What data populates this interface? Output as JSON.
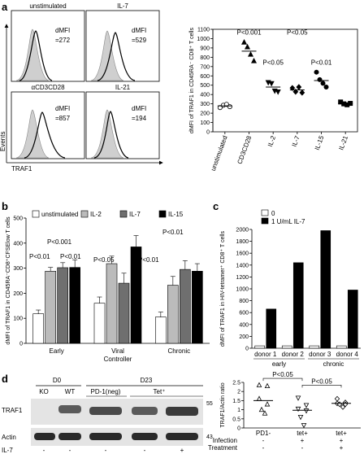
{
  "panel_a": {
    "letter": "a",
    "histograms": [
      {
        "title": "unstimulated",
        "dmfi_label": "dMFI",
        "dmfi_value": "=272"
      },
      {
        "title": "IL-7",
        "dmfi_label": "dMFI",
        "dmfi_value": "=529"
      },
      {
        "title": "αCD3CD28",
        "dmfi_label": "dMFI",
        "dmfi_value": "=857"
      },
      {
        "title": "IL-21",
        "dmfi_label": "dMFI",
        "dmfi_value": "=194"
      }
    ],
    "y_axis_label": "Events",
    "x_axis_label": "TRAF1"
  },
  "chart_data": [
    {
      "id": "a-scatter",
      "type": "scatter",
      "ylabel": "dMFI of TRAF1 in CD45RA⁻ CD8⁺ T cells",
      "ylim": [
        0,
        1100
      ],
      "yticks": [
        0,
        100,
        200,
        300,
        400,
        500,
        600,
        700,
        800,
        900,
        1000,
        1100
      ],
      "categories": [
        "unstimulated",
        "CD3CD28",
        "IL-2",
        "IL-7",
        "IL-15",
        "IL-21"
      ],
      "markers": [
        "open-circle",
        "filled-triangle",
        "filled-triangle-down",
        "filled-diamond",
        "filled-circle",
        "filled-square"
      ],
      "points": [
        [
          260,
          285,
          295,
          270
        ],
        [
          960,
          910,
          830,
          760
        ],
        [
          530,
          520,
          440,
          430
        ],
        [
          470,
          430,
          480,
          420
        ],
        [
          640,
          560,
          520,
          480
        ],
        [
          320,
          300,
          290,
          305
        ]
      ],
      "means": [
        278,
        865,
        480,
        450,
        550,
        305
      ],
      "annotations": [
        "P<0.001",
        "P<0.05",
        "P<0.05",
        "P<0.01"
      ]
    },
    {
      "id": "b-bar",
      "type": "bar",
      "ylabel": "dMFI of TRAF1 in CD45RA⁻CD8⁺CFSElow T cells",
      "ylim": [
        0,
        500
      ],
      "yticks": [
        0,
        100,
        200,
        300,
        400,
        500
      ],
      "categories": [
        "Early",
        "Viral Controller",
        "Chronic"
      ],
      "series": [
        {
          "name": "unstimulated",
          "color": "#ffffff",
          "values": [
            118,
            160,
            105
          ],
          "errors": [
            15,
            25,
            20
          ]
        },
        {
          "name": "IL-2",
          "color": "#bbbbbb",
          "values": [
            288,
            318,
            232
          ],
          "errors": [
            15,
            30,
            35
          ]
        },
        {
          "name": "IL-7",
          "color": "#6f6f6f",
          "values": [
            302,
            240,
            295
          ],
          "errors": [
            20,
            40,
            35
          ]
        },
        {
          "name": "IL-15",
          "color": "#000000",
          "values": [
            303,
            385,
            288
          ],
          "errors": [
            30,
            45,
            30
          ]
        }
      ],
      "annotations": [
        "P<0.001",
        "P<0.01",
        "P<0.01",
        "P<0.05",
        "P<0.01",
        "P<0.01"
      ]
    },
    {
      "id": "c-bar",
      "type": "bar",
      "ylabel": "dMFI of TRAF1 in HIV-tetramer⁺ CD8⁺ T cells",
      "ylim": [
        0,
        2000
      ],
      "yticks": [
        0,
        200,
        400,
        600,
        800,
        1000,
        1200,
        1400,
        1600,
        1800,
        2000
      ],
      "categories": [
        "donor 1",
        "donor 2",
        "donor 3",
        "donor 4"
      ],
      "groups": [
        "early",
        "chronic"
      ],
      "series": [
        {
          "name": "0",
          "color": "#ffffff",
          "values": [
            40,
            40,
            40,
            40
          ]
        },
        {
          "name": "1 U/mL IL-7",
          "color": "#000000",
          "values": [
            660,
            1440,
            1980,
            980
          ]
        }
      ]
    },
    {
      "id": "d-scatter",
      "type": "scatter",
      "ylabel": "TRAF1/Actin ratio",
      "ylim": [
        0,
        2.5
      ],
      "yticks": [
        0,
        0.5,
        1,
        1.5,
        2,
        2.5
      ],
      "categories": [
        "PD1-",
        "tet+",
        "tet+"
      ],
      "markers": [
        "open-triangle",
        "open-triangle-down",
        "open-diamond"
      ],
      "points": [
        [
          2.35,
          2.3,
          1.6,
          1.3,
          1.0,
          0.8
        ],
        [
          1.65,
          1.25,
          1.05,
          0.95,
          0.6,
          0.15
        ],
        [
          1.6,
          1.4,
          1.35,
          1.3,
          1.3,
          1.15
        ]
      ],
      "means": [
        1.5,
        0.97,
        1.35
      ],
      "annotations": [
        "P<0.05",
        "P<0.05"
      ],
      "row_labels": [
        "Infection",
        "Treatment"
      ],
      "row_values": [
        [
          "-",
          "+",
          "+"
        ],
        [
          "-",
          "-",
          "+"
        ]
      ]
    }
  ],
  "panel_b": {
    "letter": "b"
  },
  "panel_c": {
    "letter": "c"
  },
  "panel_d": {
    "letter": "d",
    "headers": [
      "D0",
      "D23"
    ],
    "lane_labels": [
      "KO",
      "WT",
      "PD-1(neg)",
      "Tet⁺"
    ],
    "rows": [
      "TRAF1",
      "Actin"
    ],
    "mw": [
      "55",
      "43"
    ],
    "treatment_label": "IL-7",
    "treatment_values": [
      "-",
      "-",
      "-",
      "-",
      "+"
    ]
  }
}
